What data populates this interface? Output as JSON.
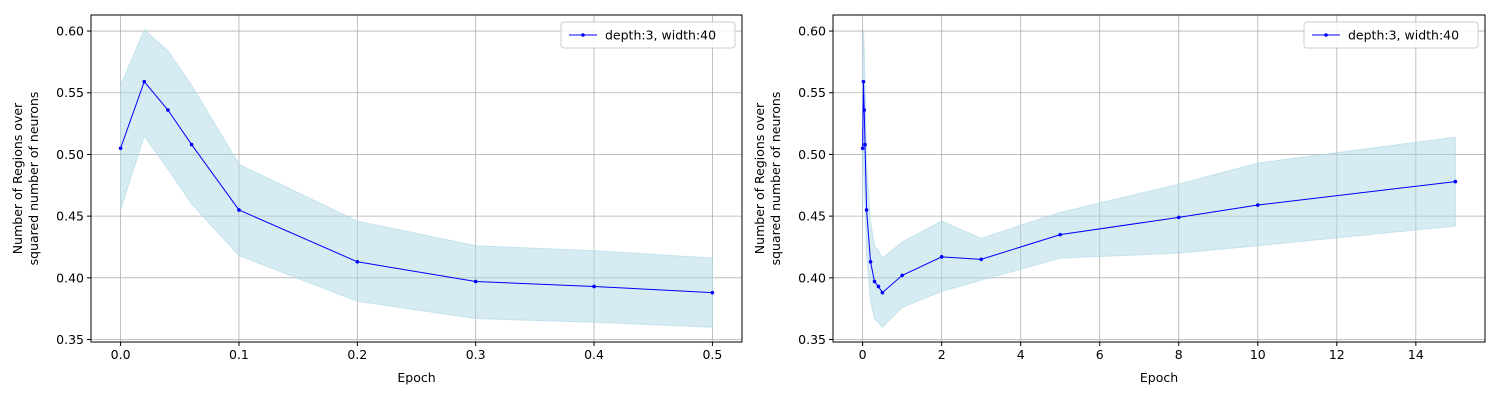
{
  "chart_data": [
    {
      "type": "line",
      "xlabel": "Epoch",
      "ylabel_lines": [
        "Number of Regions over",
        "squared number of neurons"
      ],
      "xlim": [
        -0.025,
        0.525
      ],
      "ylim": [
        0.348,
        0.613
      ],
      "xticks": [
        0.0,
        0.1,
        0.2,
        0.3,
        0.4,
        0.5
      ],
      "xtick_labels": [
        "0.0",
        "0.1",
        "0.2",
        "0.3",
        "0.4",
        "0.5"
      ],
      "yticks": [
        0.35,
        0.4,
        0.45,
        0.5,
        0.55,
        0.6
      ],
      "ytick_labels": [
        "0.35",
        "0.40",
        "0.45",
        "0.50",
        "0.55",
        "0.60"
      ],
      "grid": true,
      "legend_position": "top-right",
      "series": [
        {
          "name": "depth:3, width:40",
          "color": "#0000ff",
          "band_color": "#add8e6",
          "x": [
            0.0,
            0.02,
            0.04,
            0.06,
            0.1,
            0.2,
            0.3,
            0.4,
            0.5
          ],
          "y": [
            0.505,
            0.559,
            0.536,
            0.508,
            0.455,
            0.413,
            0.397,
            0.393,
            0.388
          ],
          "upper": [
            0.556,
            0.601,
            0.584,
            0.556,
            0.492,
            0.446,
            0.426,
            0.422,
            0.416
          ],
          "lower": [
            0.455,
            0.515,
            0.488,
            0.46,
            0.418,
            0.381,
            0.367,
            0.364,
            0.36
          ]
        }
      ]
    },
    {
      "type": "line",
      "xlabel": "Epoch",
      "ylabel_lines": [
        "Number of Regions over",
        "squared number of neurons"
      ],
      "xlim": [
        -0.75,
        15.75
      ],
      "ylim": [
        0.348,
        0.613
      ],
      "xticks": [
        0,
        2,
        4,
        6,
        8,
        10,
        12,
        14
      ],
      "xtick_labels": [
        "0",
        "2",
        "4",
        "6",
        "8",
        "10",
        "12",
        "14"
      ],
      "yticks": [
        0.35,
        0.4,
        0.45,
        0.5,
        0.55,
        0.6
      ],
      "ytick_labels": [
        "0.35",
        "0.40",
        "0.45",
        "0.50",
        "0.55",
        "0.60"
      ],
      "grid": true,
      "legend_position": "top-right",
      "series": [
        {
          "name": "depth:3, width:40",
          "color": "#0000ff",
          "band_color": "#add8e6",
          "x": [
            0.0,
            0.02,
            0.04,
            0.06,
            0.1,
            0.2,
            0.3,
            0.4,
            0.5,
            1,
            2,
            3,
            5,
            8,
            10,
            15
          ],
          "y": [
            0.505,
            0.559,
            0.536,
            0.508,
            0.455,
            0.413,
            0.397,
            0.393,
            0.388,
            0.402,
            0.417,
            0.415,
            0.435,
            0.449,
            0.459,
            0.478
          ],
          "upper": [
            0.556,
            0.601,
            0.584,
            0.556,
            0.492,
            0.446,
            0.426,
            0.422,
            0.416,
            0.429,
            0.446,
            0.432,
            0.453,
            0.476,
            0.493,
            0.514
          ],
          "lower": [
            0.455,
            0.515,
            0.488,
            0.46,
            0.418,
            0.381,
            0.367,
            0.364,
            0.36,
            0.376,
            0.389,
            0.398,
            0.416,
            0.42,
            0.426,
            0.442
          ]
        }
      ]
    }
  ]
}
